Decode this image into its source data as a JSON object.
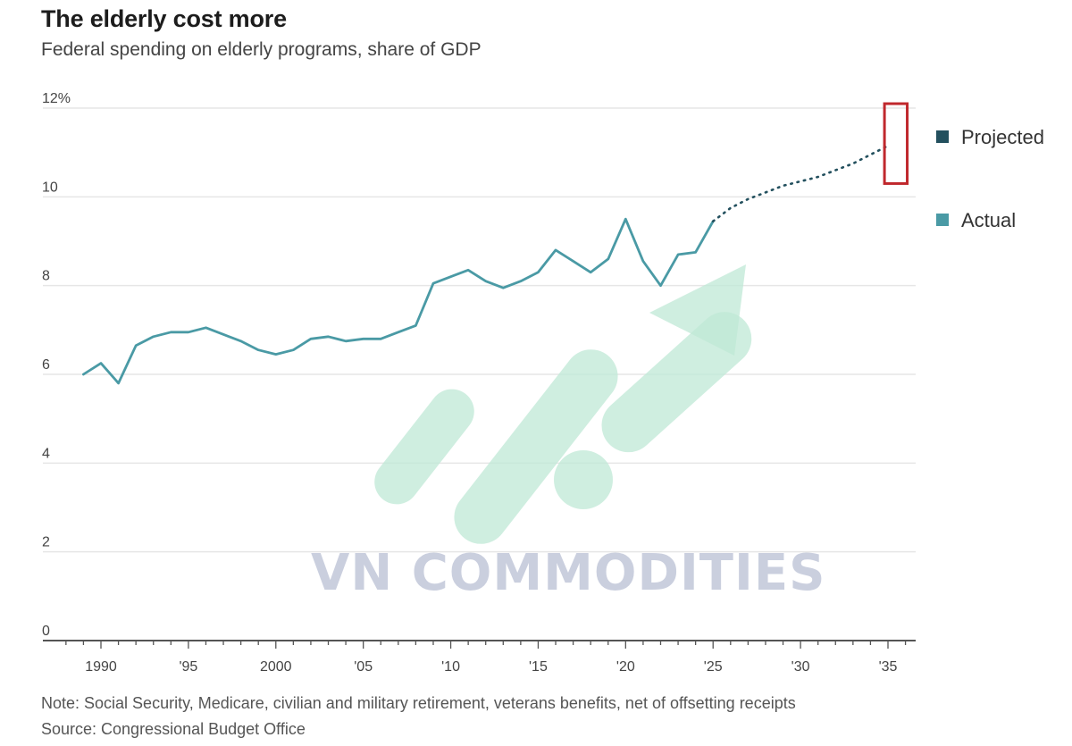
{
  "header": {
    "title": "The elderly cost more",
    "subtitle": "Federal spending on elderly programs, share of GDP"
  },
  "footer": {
    "note": "Note: Social Security, Medicare, civilian and military retirement, veterans benefits, net of offsetting receipts",
    "source": "Source: Congressional Budget Office"
  },
  "watermark": {
    "text": "VN COMMODITIES"
  },
  "colors": {
    "actual": "#4a9aa5",
    "projected": "#23505e",
    "grid": "#e6e6e6",
    "axis": "#555555",
    "highlight_box": "#c0282d",
    "watermark_green": "#bfe8d6",
    "watermark_gray": "#b9bfd4"
  },
  "chart_data": {
    "type": "line",
    "title": "The elderly cost more",
    "subtitle": "Federal spending on elderly programs, share of GDP",
    "xlabel": "",
    "ylabel": "",
    "xlim": [
      1988,
      2036
    ],
    "ylim": [
      0,
      12
    ],
    "y_ticks": [
      {
        "value": 0,
        "label": "0"
      },
      {
        "value": 2,
        "label": "2"
      },
      {
        "value": 4,
        "label": "4"
      },
      {
        "value": 6,
        "label": "6"
      },
      {
        "value": 8,
        "label": "8"
      },
      {
        "value": 10,
        "label": "10"
      },
      {
        "value": 12,
        "label": "12%"
      }
    ],
    "x_ticks": [
      {
        "value": 1990,
        "label": "1990"
      },
      {
        "value": 1995,
        "label": "'95"
      },
      {
        "value": 2000,
        "label": "2000"
      },
      {
        "value": 2005,
        "label": "'05"
      },
      {
        "value": 2010,
        "label": "'10"
      },
      {
        "value": 2015,
        "label": "'15"
      },
      {
        "value": 2020,
        "label": "'20"
      },
      {
        "value": 2025,
        "label": "'25"
      },
      {
        "value": 2030,
        "label": "'30"
      },
      {
        "value": 2035,
        "label": "'35"
      }
    ],
    "grid": true,
    "legend": {
      "placement": "right",
      "entries": [
        {
          "name": "Projected",
          "color": "#23505e"
        },
        {
          "name": "Actual",
          "color": "#4a9aa5"
        }
      ]
    },
    "series": [
      {
        "name": "Actual",
        "style": "solid",
        "x": [
          1989,
          1990,
          1991,
          1992,
          1993,
          1994,
          1995,
          1996,
          1997,
          1998,
          1999,
          2000,
          2001,
          2002,
          2003,
          2004,
          2005,
          2006,
          2007,
          2008,
          2009,
          2010,
          2011,
          2012,
          2013,
          2014,
          2015,
          2016,
          2017,
          2018,
          2019,
          2020,
          2021,
          2022,
          2023,
          2024,
          2025
        ],
        "y": [
          6.0,
          6.25,
          5.8,
          6.65,
          6.85,
          6.95,
          6.95,
          7.05,
          6.9,
          6.75,
          6.55,
          6.45,
          6.55,
          6.8,
          6.85,
          6.75,
          6.8,
          6.8,
          6.95,
          7.1,
          8.05,
          8.2,
          8.35,
          8.1,
          7.95,
          8.1,
          8.3,
          8.8,
          8.55,
          8.3,
          8.6,
          9.5,
          8.55,
          8.0,
          8.7,
          8.75,
          9.45
        ]
      },
      {
        "name": "Projected",
        "style": "dotted",
        "x": [
          2025,
          2026,
          2027,
          2028,
          2029,
          2030,
          2031,
          2032,
          2033,
          2034,
          2035
        ],
        "y": [
          9.45,
          9.75,
          9.95,
          10.1,
          10.25,
          10.35,
          10.45,
          10.6,
          10.75,
          10.95,
          11.15
        ]
      }
    ],
    "annotations": [
      {
        "type": "box",
        "x_range": [
          2034.8,
          2036.1
        ],
        "y_range": [
          10.3,
          12.1
        ],
        "color": "#c0282d"
      }
    ]
  }
}
